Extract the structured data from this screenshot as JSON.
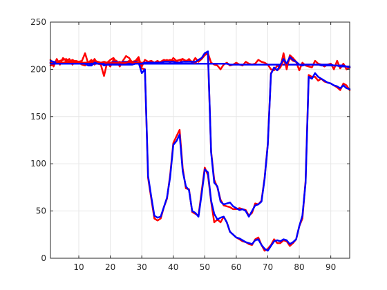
{
  "chart_data": {
    "type": "line",
    "title": "",
    "xlabel": "",
    "ylabel": "",
    "xlim": [
      1,
      96
    ],
    "ylim": [
      0,
      250
    ],
    "xticks": [
      10,
      20,
      30,
      40,
      50,
      60,
      70,
      80,
      90
    ],
    "yticks": [
      0,
      50,
      100,
      150,
      200,
      250
    ],
    "grid": true,
    "legend": false,
    "colors": {
      "red": "#ff0000",
      "blue": "#0000ff",
      "grid": "#e6e6e6",
      "axis": "#262626"
    },
    "series": [
      {
        "color": "#ff0000",
        "x": [
          1,
          2,
          3,
          4,
          5,
          6,
          7,
          8,
          9,
          10,
          11,
          12,
          13,
          14,
          15,
          16,
          17,
          18,
          19,
          20,
          21,
          22,
          23,
          24,
          25,
          26,
          27,
          28,
          29,
          30,
          31,
          32,
          33,
          34,
          35,
          36,
          37,
          38,
          39,
          40,
          41,
          42,
          43,
          44,
          45,
          46,
          47,
          48,
          49,
          50,
          51,
          52,
          53,
          54,
          55,
          56,
          57,
          58,
          59,
          60,
          61,
          62,
          63,
          64,
          65,
          66,
          67,
          68,
          69,
          70,
          71,
          72,
          73,
          74,
          75,
          76,
          77,
          78,
          79,
          80,
          81,
          82,
          83,
          84,
          85,
          86,
          87,
          88,
          89,
          90,
          91,
          92,
          93,
          94,
          95,
          96
        ],
        "y": [
          210,
          203,
          211,
          205,
          212,
          209,
          211,
          205,
          209,
          208,
          209,
          217,
          206,
          205,
          211,
          206,
          205,
          193,
          207,
          203,
          210,
          209,
          203,
          209,
          214,
          212,
          207,
          208,
          210,
          203,
          210,
          208,
          209,
          207,
          209,
          206,
          208,
          210,
          207,
          212,
          209,
          210,
          211,
          208,
          211,
          207,
          212,
          208,
          211,
          215,
          217,
          207,
          205,
          204,
          200,
          205,
          207,
          204,
          205,
          207,
          205,
          204,
          208,
          206,
          205,
          206,
          210,
          208,
          207,
          205,
          200,
          199,
          204,
          202,
          217,
          200,
          215,
          212,
          208,
          199,
          207,
          204,
          203,
          202,
          209,
          206,
          205,
          203,
          205,
          206,
          200,
          209,
          201,
          206,
          200,
          202
        ]
      },
      {
        "color": "#0000ff",
        "x": [
          1,
          2,
          3,
          4,
          5,
          6,
          7,
          8,
          9,
          10,
          11,
          12,
          13,
          14,
          15,
          16,
          17,
          18,
          19,
          20,
          21,
          22,
          23,
          24,
          25,
          26,
          27,
          28,
          29,
          30,
          31,
          32,
          33,
          34,
          35,
          36,
          37,
          38,
          39,
          40,
          41,
          42,
          43,
          44,
          45,
          46,
          47,
          48,
          49,
          50,
          51,
          52,
          53,
          54,
          55,
          56,
          57,
          58,
          59,
          60,
          61,
          62,
          63,
          64,
          65,
          66,
          67,
          68,
          69,
          70,
          71,
          72,
          73,
          74,
          75,
          76,
          77,
          78,
          79,
          80,
          81,
          82,
          83,
          84,
          85,
          86,
          87,
          88,
          89,
          90,
          91,
          92,
          93,
          94,
          95,
          96
        ],
        "y": [
          209,
          208,
          207,
          207,
          207,
          207,
          207,
          207,
          207,
          207,
          207,
          207,
          207,
          207,
          207,
          207,
          207,
          206,
          206,
          206,
          206,
          206,
          206,
          206,
          206,
          206,
          206,
          206,
          206,
          206,
          206,
          206,
          206,
          206,
          206,
          206,
          206,
          206,
          206,
          206,
          206,
          206,
          206,
          206,
          206,
          206,
          206,
          206,
          206,
          206,
          206,
          206,
          206,
          206,
          206,
          206,
          206,
          205,
          205,
          205,
          205,
          205,
          205,
          205,
          205,
          205,
          205,
          205,
          205,
          205,
          205,
          205,
          205,
          205,
          205,
          205,
          205,
          205,
          205,
          205,
          205,
          205,
          205,
          205,
          205,
          205,
          204,
          204,
          204,
          204,
          204,
          204,
          203,
          203,
          203,
          203
        ]
      },
      {
        "color": "#ff0000",
        "x": [
          1,
          2,
          3,
          4,
          5,
          6,
          7,
          8,
          9,
          10,
          11,
          12,
          13,
          14,
          15,
          16,
          17,
          18,
          19,
          20,
          21,
          22,
          23,
          24,
          25,
          26,
          27,
          28,
          29,
          30,
          31,
          32,
          33,
          34,
          35,
          36,
          37,
          38,
          39,
          40,
          41,
          42,
          43,
          44,
          45,
          46,
          47,
          48,
          49,
          50,
          51,
          52,
          53,
          54,
          55,
          56,
          57,
          58,
          59,
          60,
          61,
          62,
          63,
          64,
          65,
          66,
          67,
          68,
          69,
          70,
          71,
          72,
          73,
          74,
          75,
          76,
          77,
          78,
          79,
          80,
          81,
          82,
          83,
          84,
          85,
          86,
          87,
          88,
          89,
          90,
          91,
          92,
          93,
          94,
          95,
          96
        ],
        "y": [
          204,
          205,
          207,
          209,
          210,
          211,
          208,
          210,
          208,
          207,
          205,
          204,
          207,
          210,
          205,
          208,
          206,
          205,
          207,
          210,
          212,
          207,
          208,
          206,
          207,
          209,
          208,
          209,
          213,
          201,
          200,
          85,
          63,
          42,
          40,
          42,
          54,
          63,
          88,
          122,
          129,
          136,
          95,
          74,
          73,
          49,
          47,
          45,
          71,
          96,
          88,
          60,
          38,
          41,
          38,
          44,
          38,
          28,
          25,
          22,
          20,
          18,
          17,
          15,
          14,
          20,
          22,
          14,
          8,
          10,
          14,
          20,
          16,
          16,
          19,
          18,
          13,
          16,
          20,
          34,
          42,
          82,
          194,
          192,
          192,
          188,
          190,
          187,
          186,
          185,
          183,
          181,
          178,
          185,
          183,
          178
        ]
      },
      {
        "color": "#0000ff",
        "x": [
          1,
          2,
          3,
          4,
          5,
          6,
          7,
          8,
          9,
          10,
          11,
          12,
          13,
          14,
          15,
          16,
          17,
          18,
          19,
          20,
          21,
          22,
          23,
          24,
          25,
          26,
          27,
          28,
          29,
          30,
          31,
          32,
          33,
          34,
          35,
          36,
          37,
          38,
          39,
          40,
          41,
          42,
          43,
          44,
          45,
          46,
          47,
          48,
          49,
          50,
          51,
          52,
          53,
          54,
          55,
          56,
          57,
          58,
          59,
          60,
          61,
          62,
          63,
          64,
          65,
          66,
          67,
          68,
          69,
          70,
          71,
          72,
          73,
          74,
          75,
          76,
          77,
          78,
          79,
          80,
          81,
          82,
          83,
          84,
          85,
          86,
          87,
          88,
          89,
          90,
          91,
          92,
          93,
          94,
          95,
          96
        ],
        "y": [
          207,
          207,
          206,
          206,
          207,
          207,
          207,
          207,
          207,
          207,
          206,
          206,
          204,
          204,
          207,
          208,
          207,
          204,
          205,
          207,
          208,
          208,
          207,
          208,
          208,
          208,
          207,
          208,
          207,
          196,
          200,
          87,
          65,
          45,
          43,
          44,
          54,
          64,
          86,
          120,
          124,
          131,
          92,
          76,
          72,
          50,
          48,
          44,
          68,
          94,
          91,
          61,
          47,
          41,
          43,
          44,
          38,
          28,
          25,
          22,
          21,
          19,
          17,
          16,
          15,
          19,
          20,
          14,
          10,
          8,
          13,
          18,
          19,
          18,
          20,
          19,
          15,
          17,
          20,
          34,
          45,
          80,
          192,
          190,
          196,
          192,
          190,
          188,
          186,
          185,
          183,
          182,
          180,
          183,
          180,
          179
        ]
      },
      {
        "color": "#ff0000",
        "x": [
          1,
          2,
          3,
          4,
          5,
          6,
          7,
          8,
          9,
          10,
          11,
          12,
          13,
          14,
          15,
          16,
          17,
          18,
          19,
          20,
          21,
          22,
          23,
          24,
          25,
          26,
          27,
          28,
          29,
          30,
          31,
          32,
          33,
          34,
          35,
          36,
          37,
          38,
          39,
          40,
          41,
          42,
          43,
          44,
          45,
          46,
          47,
          48,
          49,
          50,
          51,
          52,
          53,
          54,
          55,
          56,
          57,
          58,
          59,
          60,
          61,
          62,
          63,
          64,
          65,
          66,
          67,
          68,
          69,
          70,
          71,
          72,
          73,
          74,
          75,
          76,
          77,
          78,
          79,
          80,
          81,
          82,
          83,
          84,
          85,
          86,
          87,
          88,
          89,
          90,
          91,
          92,
          93,
          94,
          95,
          96
        ],
        "y": [
          207,
          206,
          206,
          207,
          207,
          208,
          207,
          208,
          207,
          207,
          207,
          207,
          207,
          208,
          209,
          208,
          207,
          208,
          207,
          207,
          207,
          207,
          207,
          207,
          207,
          208,
          207,
          207,
          207,
          207,
          207,
          207,
          207,
          207,
          207,
          208,
          210,
          209,
          210,
          209,
          208,
          207,
          211,
          209,
          210,
          208,
          207,
          210,
          212,
          217,
          216,
          113,
          83,
          75,
          62,
          56,
          55,
          54,
          52,
          52,
          53,
          52,
          51,
          45,
          48,
          58,
          57,
          61,
          85,
          121,
          196,
          201,
          199,
          202,
          210,
          203,
          212,
          209,
          208,
          205,
          204,
          205,
          205,
          205,
          205,
          205,
          205,
          205,
          205,
          205,
          204,
          204,
          204,
          204,
          203,
          202
        ]
      },
      {
        "color": "#0000ff",
        "x": [
          1,
          2,
          3,
          4,
          5,
          6,
          7,
          8,
          9,
          10,
          11,
          12,
          13,
          14,
          15,
          16,
          17,
          18,
          19,
          20,
          21,
          22,
          23,
          24,
          25,
          26,
          27,
          28,
          29,
          30,
          31,
          32,
          33,
          34,
          35,
          36,
          37,
          38,
          39,
          40,
          41,
          42,
          43,
          44,
          45,
          46,
          47,
          48,
          49,
          50,
          51,
          52,
          53,
          54,
          55,
          56,
          57,
          58,
          59,
          60,
          61,
          62,
          63,
          64,
          65,
          66,
          67,
          68,
          69,
          70,
          71,
          72,
          73,
          74,
          75,
          76,
          77,
          78,
          79,
          80,
          81,
          82,
          83,
          84,
          85,
          86,
          87,
          88,
          89,
          90,
          91,
          92,
          93,
          94,
          95,
          96
        ],
        "y": [
          206,
          206,
          206,
          206,
          206,
          206,
          206,
          206,
          206,
          206,
          206,
          206,
          206,
          206,
          206,
          206,
          206,
          205,
          205,
          205,
          205,
          205,
          205,
          205,
          205,
          205,
          205,
          206,
          206,
          206,
          207,
          207,
          207,
          207,
          207,
          207,
          208,
          208,
          208,
          208,
          207,
          207,
          208,
          208,
          208,
          208,
          208,
          210,
          212,
          217,
          219,
          112,
          80,
          76,
          60,
          57,
          58,
          59,
          55,
          53,
          51,
          52,
          50,
          44,
          50,
          56,
          57,
          60,
          84,
          120,
          195,
          202,
          199,
          205,
          211,
          206,
          213,
          210,
          208,
          205,
          204,
          205,
          205,
          205,
          205,
          205,
          205,
          205,
          205,
          205,
          204,
          204,
          204,
          204,
          203,
          202
        ]
      }
    ]
  }
}
